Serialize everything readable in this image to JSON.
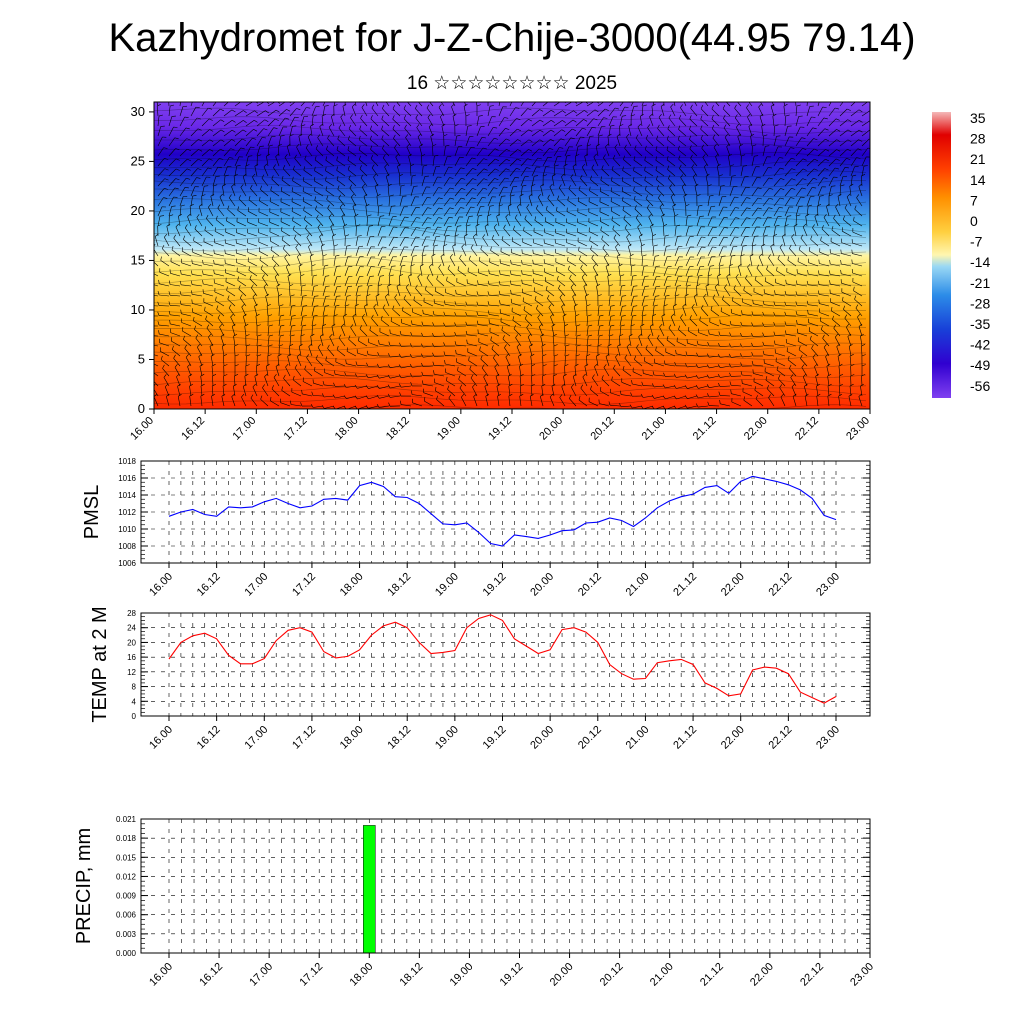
{
  "title": "Kazhydromet for J-Z-Chije-3000(44.95 79.14)",
  "subtitle": "16 ☆☆☆☆☆☆☆☆ 2025",
  "time_ticks": [
    "16.00",
    "16.12",
    "17.00",
    "17.12",
    "18.00",
    "18.12",
    "19.00",
    "19.12",
    "20.00",
    "20.12",
    "21.00",
    "21.12",
    "22.00",
    "22.12",
    "23.00"
  ],
  "chart_data": [
    {
      "type": "heatmap",
      "title": "",
      "xlabel": "",
      "ylabel": "",
      "x_ticks": [
        "16.00",
        "16.12",
        "17.00",
        "17.12",
        "18.00",
        "18.12",
        "19.00",
        "19.12",
        "20.00",
        "20.12",
        "21.00",
        "21.12",
        "22.00",
        "22.12",
        "23.00"
      ],
      "y_ticks": [
        0,
        5,
        10,
        15,
        20,
        25,
        30
      ],
      "ylim": [
        0,
        31
      ],
      "colorbar": {
        "labels": [
          35,
          28,
          21,
          14,
          7,
          0,
          -7,
          -14,
          -21,
          -28,
          -35,
          -42,
          -49,
          -56
        ],
        "range": [
          -63,
          42
        ]
      },
      "overlay": "wind barbs",
      "description_values": {
        "surface_temp_peak": 21,
        "top_temp": -60
      }
    },
    {
      "type": "line",
      "ylabel": "PMSL",
      "ylim": [
        1006,
        1018
      ],
      "y_ticks": [
        1006,
        1008,
        1010,
        1012,
        1014,
        1016,
        1018
      ],
      "x_ticks": [
        "16.00",
        "16.12",
        "17.00",
        "17.12",
        "18.00",
        "18.12",
        "19.00",
        "19.12",
        "20.00",
        "20.12",
        "21.00",
        "21.12",
        "22.00",
        "22.12",
        "23.00"
      ],
      "grid": true,
      "color": "#0000ff",
      "x_hours": [
        0,
        3,
        6,
        9,
        12,
        15,
        18,
        21,
        24,
        27,
        30,
        33,
        36,
        39,
        42,
        45,
        48,
        51,
        54,
        57,
        60,
        63,
        66,
        69,
        72,
        75,
        78,
        81,
        84,
        87,
        90,
        93,
        96,
        99,
        102,
        105,
        108,
        111,
        114,
        117,
        120,
        123,
        126,
        129,
        132,
        135,
        138,
        141,
        144,
        147,
        150,
        153,
        156,
        159,
        162,
        165,
        168
      ],
      "values": [
        1011.5,
        1012.0,
        1012.3,
        1011.7,
        1011.5,
        1012.6,
        1012.5,
        1012.6,
        1013.2,
        1013.6,
        1013.0,
        1012.5,
        1012.7,
        1013.5,
        1013.6,
        1013.4,
        1015.1,
        1015.5,
        1015.0,
        1013.8,
        1013.7,
        1013.0,
        1011.8,
        1010.6,
        1010.5,
        1010.7,
        1009.6,
        1008.3,
        1008.0,
        1009.3,
        1009.1,
        1008.9,
        1009.3,
        1009.8,
        1009.9,
        1010.7,
        1010.8,
        1011.3,
        1011.0,
        1010.3,
        1011.3,
        1012.5,
        1013.3,
        1013.8,
        1014.1,
        1014.9,
        1015.1,
        1014.2,
        1015.6,
        1016.2,
        1015.9,
        1015.6,
        1015.2,
        1014.6,
        1013.6,
        1011.6,
        1011.1
      ]
    },
    {
      "type": "line",
      "ylabel": "TEMP at 2 M",
      "ylim": [
        0,
        28
      ],
      "y_ticks": [
        0,
        4,
        8,
        12,
        16,
        20,
        24,
        28
      ],
      "x_ticks": [
        "16.00",
        "16.12",
        "17.00",
        "17.12",
        "18.00",
        "18.12",
        "19.00",
        "19.12",
        "20.00",
        "20.12",
        "21.00",
        "21.12",
        "22.00",
        "22.12",
        "23.00"
      ],
      "grid": true,
      "color": "#ff0000",
      "x_hours": [
        0,
        3,
        6,
        9,
        12,
        15,
        18,
        21,
        24,
        27,
        30,
        33,
        36,
        39,
        42,
        45,
        48,
        51,
        54,
        57,
        60,
        63,
        66,
        69,
        72,
        75,
        78,
        81,
        84,
        87,
        90,
        93,
        96,
        99,
        102,
        105,
        108,
        111,
        114,
        117,
        120,
        123,
        126,
        129,
        132,
        135,
        138,
        141,
        144,
        147,
        150,
        153,
        156,
        159,
        162,
        165,
        168
      ],
      "values": [
        15.5,
        20.0,
        21.8,
        22.5,
        21.0,
        16.5,
        14.2,
        14.2,
        15.6,
        20.5,
        23.3,
        24.0,
        22.8,
        17.5,
        15.8,
        16.2,
        18.0,
        22.0,
        24.5,
        25.5,
        24.0,
        20.0,
        17.0,
        17.3,
        17.8,
        24.0,
        26.5,
        27.5,
        26.0,
        21.0,
        19.0,
        17.0,
        18.0,
        23.5,
        24.0,
        22.8,
        20.0,
        14.0,
        11.5,
        10.0,
        10.2,
        14.5,
        15.0,
        15.4,
        14.0,
        9.0,
        7.5,
        5.5,
        6.0,
        12.5,
        13.3,
        13.0,
        11.5,
        6.5,
        5.0,
        3.5,
        5.3
      ]
    },
    {
      "type": "bar",
      "ylabel": "PRECIP, mm",
      "ylim": [
        0,
        0.021
      ],
      "y_ticks": [
        "0.000",
        "0.003",
        "0.006",
        "0.009",
        "0.012",
        "0.015",
        "0.018",
        "0.021"
      ],
      "x_ticks": [
        "16.00",
        "16.12",
        "17.00",
        "17.12",
        "18.00",
        "18.12",
        "19.00",
        "19.12",
        "20.00",
        "20.12",
        "21.00",
        "21.12",
        "22.00",
        "22.12",
        "23.00"
      ],
      "grid": true,
      "color": "#00ff00",
      "bars": [
        {
          "x_hours": 48,
          "value": 0.02
        }
      ]
    }
  ]
}
